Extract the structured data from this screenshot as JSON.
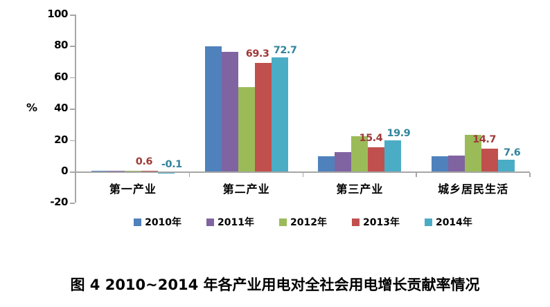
{
  "caption": "图 4  2010~2014 年各产业用电对全社会用电增长贡献率情况",
  "chart_data": {
    "type": "bar",
    "title": "",
    "xlabel": "",
    "ylabel": "%",
    "ylim": [
      -20,
      100
    ],
    "ytick_step": 20,
    "tick_labels": [
      "100",
      "80",
      "60",
      "40",
      "20",
      "0",
      "-20"
    ],
    "grid": false,
    "legend_position": "bottom",
    "axis_color": "#a6a6a6",
    "categories": [
      "第一产业",
      "第二产业",
      "第三产业",
      "城乡居民生活"
    ],
    "series": [
      {
        "name": "2010年",
        "color": "#4f81bd",
        "values": [
          0.5,
          79.9,
          9.7,
          9.9
        ],
        "labels_shown": false
      },
      {
        "name": "2011年",
        "color": "#8064a2",
        "values": [
          0.5,
          76.2,
          12.4,
          10.1
        ],
        "labels_shown": false
      },
      {
        "name": "2012年",
        "color": "#9bbb59",
        "values": [
          0.3,
          53.6,
          22.5,
          23.2
        ],
        "labels_shown": false
      },
      {
        "name": "2013年",
        "color": "#c0504d",
        "values": [
          0.6,
          69.3,
          15.4,
          14.7
        ],
        "labels_shown": true,
        "label_color": "#9e3a38",
        "label_offset": {
          "dx": -8,
          "dy": -21
        }
      },
      {
        "name": "2014年",
        "color": "#4bacc6",
        "values": [
          -0.1,
          72.7,
          19.9,
          7.6
        ],
        "labels_shown": true,
        "label_color": "#31849b",
        "label_offset": {
          "dx": 8,
          "dy": -18
        }
      }
    ]
  }
}
